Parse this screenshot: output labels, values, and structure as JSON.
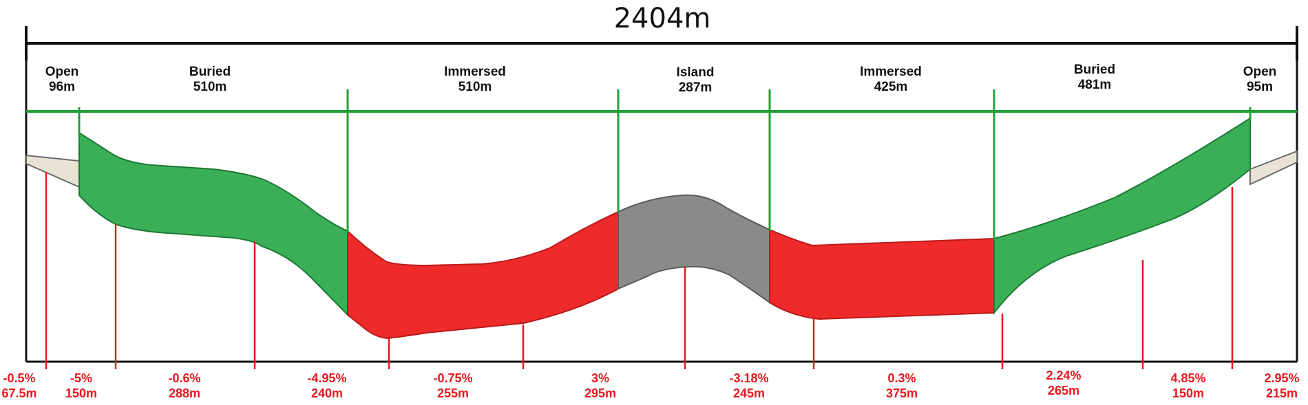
{
  "total_length": "2404m",
  "colors": {
    "buried": "#2aa84a",
    "immersed": "#ee2a2a",
    "island": "#8a8a8a",
    "open": "#e9e3d6",
    "divider": "#22a036",
    "marker": "#e8171e",
    "axis": "#111111"
  },
  "sections": [
    {
      "name": "Open",
      "length": "96m"
    },
    {
      "name": "Buried",
      "length": "510m"
    },
    {
      "name": "Immersed",
      "length": "510m"
    },
    {
      "name": "Island",
      "length": "287m"
    },
    {
      "name": "Immersed",
      "length": "425m"
    },
    {
      "name": "Buried",
      "length": "481m"
    },
    {
      "name": "Open",
      "length": "95m"
    }
  ],
  "gradients": [
    {
      "slope": "-0.5%",
      "length": "67.5m"
    },
    {
      "slope": "-5%",
      "length": "150m"
    },
    {
      "slope": "-0.6%",
      "length": "288m"
    },
    {
      "slope": "-4.95%",
      "length": "240m"
    },
    {
      "slope": "-0.75%",
      "length": "255m"
    },
    {
      "slope": "3%",
      "length": "295m"
    },
    {
      "slope": "-3.18%",
      "length": "245m"
    },
    {
      "slope": "0.3%",
      "length": "375m"
    },
    {
      "slope": "2.24%",
      "length": "265m"
    },
    {
      "slope": "4.85%",
      "length": "150m"
    },
    {
      "slope": "2.95%",
      "length": "215m"
    }
  ]
}
